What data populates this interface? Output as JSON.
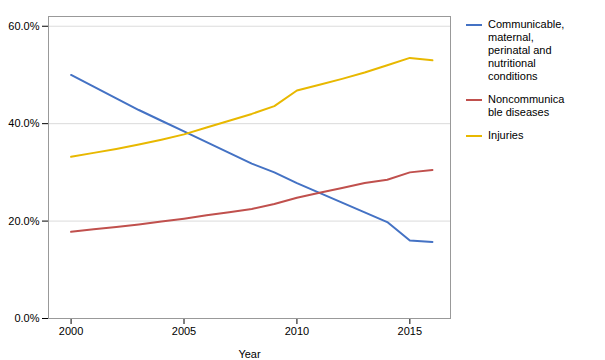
{
  "chart_data": {
    "type": "line",
    "x": [
      2000,
      2001,
      2002,
      2003,
      2004,
      2005,
      2006,
      2007,
      2008,
      2009,
      2010,
      2011,
      2012,
      2013,
      2014,
      2015,
      2016
    ],
    "series": [
      {
        "name": "Communicable,\nmaternal,\nperinatal and\nnutritional\nconditions",
        "color": "#4472C4",
        "values": [
          0.5,
          0.476,
          0.452,
          0.428,
          0.406,
          0.384,
          0.362,
          0.34,
          0.318,
          0.3,
          0.278,
          0.258,
          0.238,
          0.218,
          0.198,
          0.16,
          0.157
        ]
      },
      {
        "name": "Noncommunica\nble diseases",
        "color": "#C0504D",
        "values": [
          0.178,
          0.183,
          0.188,
          0.193,
          0.199,
          0.205,
          0.212,
          0.218,
          0.225,
          0.235,
          0.248,
          0.258,
          0.268,
          0.278,
          0.285,
          0.3,
          0.305
        ]
      },
      {
        "name": "Injuries",
        "color": "#E8B800",
        "values": [
          0.332,
          0.34,
          0.348,
          0.357,
          0.367,
          0.378,
          0.392,
          0.406,
          0.42,
          0.436,
          0.468,
          0.48,
          0.492,
          0.505,
          0.52,
          0.535,
          0.53
        ]
      }
    ],
    "xlabel": "Year",
    "xlim": [
      1999.0,
      2016.8
    ],
    "xticks": [
      2000,
      2005,
      2010,
      2015
    ],
    "ylim": [
      0.0,
      0.62
    ],
    "yticks": [
      {
        "value": 0.0,
        "label": "0.0%"
      },
      {
        "value": 0.2,
        "label": "20.0%"
      },
      {
        "value": 0.4,
        "label": "40.0%"
      },
      {
        "value": 0.6,
        "label": "60.0%"
      }
    ],
    "grid": true,
    "legend": "right"
  }
}
